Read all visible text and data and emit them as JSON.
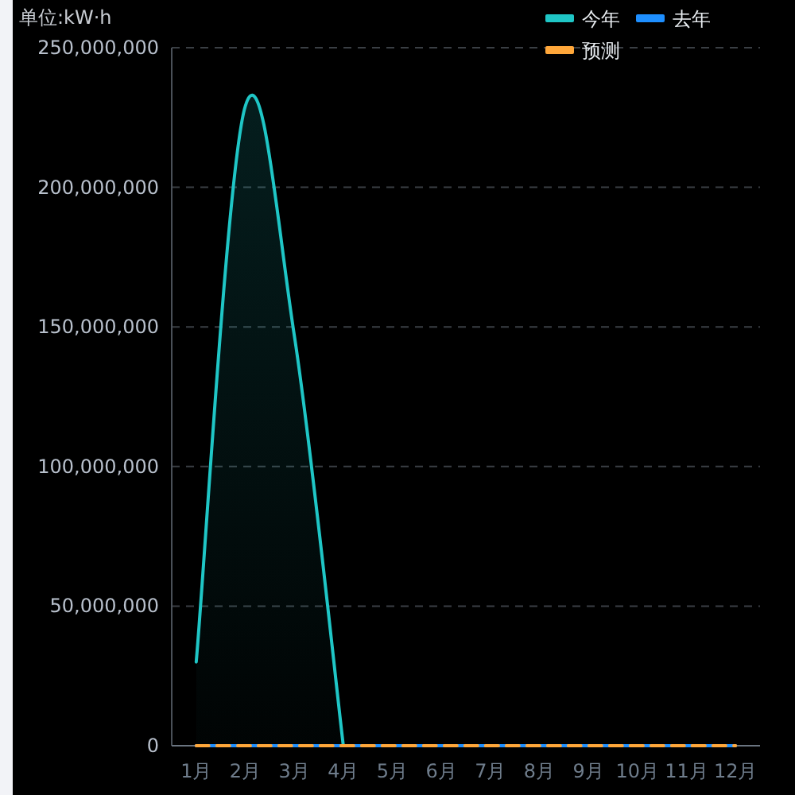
{
  "chart_data": {
    "type": "line",
    "ylabel": "单位:kW·h",
    "categories": [
      "1月",
      "2月",
      "3月",
      "4月",
      "5月",
      "6月",
      "7月",
      "8月",
      "9月",
      "10月",
      "11月",
      "12月"
    ],
    "series": [
      {
        "name": "今年",
        "type": "area",
        "color": "#1fc6c6",
        "values": [
          30000000,
          229000000,
          147000000,
          0,
          null,
          null,
          null,
          null,
          null,
          null,
          null,
          null
        ]
      },
      {
        "name": "去年",
        "color": "#1e8fff",
        "values": [
          0,
          0,
          0,
          0,
          0,
          0,
          0,
          0,
          0,
          0,
          0,
          0
        ]
      },
      {
        "name": "预测",
        "color": "#ffa73a",
        "line_style": "dashed",
        "values": [
          0,
          0,
          0,
          0,
          0,
          0,
          0,
          0,
          0,
          0,
          0,
          0
        ]
      }
    ],
    "ylim": [
      0,
      250000000
    ],
    "yticks": [
      {
        "value": 0,
        "label": "0"
      },
      {
        "value": 50000000,
        "label": "50,000,000"
      },
      {
        "value": 100000000,
        "label": "100,000,000"
      },
      {
        "value": 150000000,
        "label": "150,000,000"
      },
      {
        "value": 200000000,
        "label": "200,000,000"
      },
      {
        "value": 250000000,
        "label": "250,000,000"
      }
    ],
    "grid": "y",
    "legend": "top right",
    "marker": "none"
  }
}
